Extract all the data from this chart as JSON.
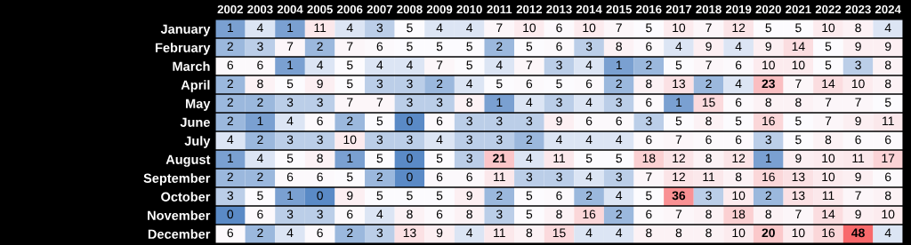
{
  "chart_data": {
    "type": "heatmap",
    "categories": [
      "2002",
      "2003",
      "2004",
      "2005",
      "2006",
      "2007",
      "2008",
      "2009",
      "2010",
      "2011",
      "2012",
      "2013",
      "2014",
      "2015",
      "2016",
      "2017",
      "2018",
      "2019",
      "2020",
      "2021",
      "2022",
      "2023",
      "2024"
    ],
    "y_categories": [
      "January",
      "February",
      "March",
      "April",
      "May",
      "June",
      "July",
      "August",
      "September",
      "October",
      "November",
      "December"
    ],
    "cells": [
      [
        1,
        4,
        1,
        11,
        4,
        3,
        5,
        4,
        4,
        7,
        10,
        6,
        10,
        7,
        5,
        10,
        7,
        12,
        5,
        5,
        10,
        8,
        4
      ],
      [
        2,
        3,
        7,
        2,
        7,
        6,
        5,
        5,
        5,
        2,
        5,
        6,
        3,
        8,
        6,
        4,
        9,
        4,
        9,
        14,
        5,
        9,
        9
      ],
      [
        6,
        6,
        1,
        4,
        5,
        4,
        4,
        7,
        5,
        4,
        7,
        3,
        4,
        1,
        2,
        5,
        7,
        6,
        10,
        10,
        5,
        3,
        8
      ],
      [
        2,
        8,
        5,
        9,
        5,
        3,
        3,
        2,
        4,
        5,
        6,
        5,
        6,
        2,
        8,
        13,
        2,
        4,
        23,
        7,
        14,
        10,
        8
      ],
      [
        2,
        2,
        3,
        3,
        7,
        7,
        3,
        3,
        8,
        1,
        4,
        3,
        4,
        3,
        6,
        1,
        15,
        6,
        8,
        8,
        7,
        7,
        5
      ],
      [
        2,
        1,
        4,
        6,
        2,
        5,
        0,
        6,
        3,
        3,
        3,
        9,
        6,
        6,
        3,
        5,
        8,
        5,
        16,
        5,
        7,
        9,
        11
      ],
      [
        4,
        2,
        3,
        3,
        10,
        3,
        3,
        4,
        3,
        3,
        2,
        4,
        4,
        4,
        6,
        7,
        6,
        6,
        3,
        5,
        8,
        6,
        6
      ],
      [
        1,
        4,
        5,
        8,
        1,
        5,
        0,
        5,
        3,
        21,
        4,
        11,
        5,
        5,
        18,
        12,
        8,
        12,
        1,
        9,
        10,
        11,
        17
      ],
      [
        2,
        2,
        6,
        6,
        5,
        2,
        0,
        6,
        6,
        11,
        3,
        3,
        4,
        3,
        7,
        12,
        11,
        8,
        16,
        13,
        10,
        9,
        6
      ],
      [
        3,
        5,
        1,
        0,
        9,
        5,
        5,
        5,
        9,
        2,
        5,
        6,
        2,
        4,
        5,
        36,
        3,
        10,
        2,
        13,
        11,
        7,
        8
      ],
      [
        0,
        6,
        3,
        3,
        6,
        4,
        8,
        6,
        8,
        3,
        5,
        8,
        16,
        2,
        6,
        7,
        8,
        18,
        8,
        7,
        14,
        9,
        10
      ],
      [
        6,
        2,
        4,
        6,
        2,
        3,
        13,
        9,
        4,
        11,
        8,
        15,
        4,
        4,
        8,
        8,
        8,
        10,
        20,
        10,
        16,
        48,
        4
      ]
    ],
    "data_labels": true,
    "grid": "y"
  }
}
